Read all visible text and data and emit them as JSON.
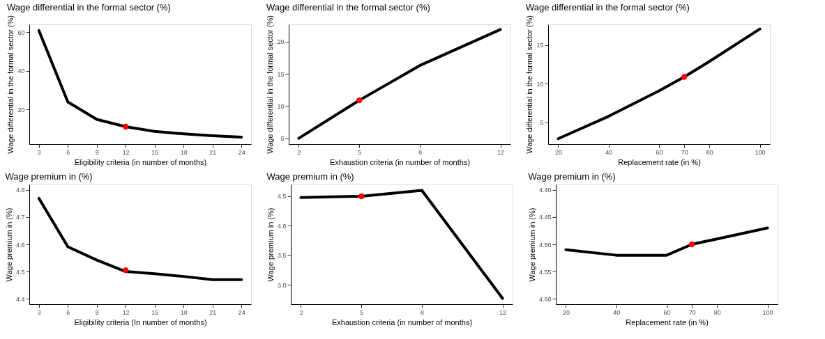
{
  "chart_data": [
    {
      "type": "line",
      "title": "Wage differential in the formal sector (%)",
      "xlabel": "Eligibility criteria (in number of months)",
      "ylabel": "Wage differential in the formal sector (%)",
      "xlim": [
        2,
        25
      ],
      "xticks": [
        3,
        6,
        9,
        12,
        15,
        18,
        21,
        24
      ],
      "ylim": [
        2,
        64
      ],
      "yticks": [
        20,
        40,
        60
      ],
      "grid": false,
      "line_style": "solid",
      "x": [
        3,
        6,
        9,
        12,
        15,
        18,
        21,
        24
      ],
      "series": [
        {
          "color": "#000000",
          "marker": "none",
          "values": [
            60.8,
            23.8,
            14.8,
            11,
            8.6,
            7.3,
            6.3,
            5.6
          ]
        },
        {
          "type": "scatter",
          "marker": "circle",
          "color": "#ff0000",
          "x": [
            12
          ],
          "values": [
            11
          ]
        }
      ]
    },
    {
      "type": "line",
      "title": "Wage differential in the formal sector (%)",
      "xlabel": "Exhaustion criteria (in number of months)",
      "ylabel": "Wage differential in the formal sector (%)",
      "xlim": [
        1.5,
        12.5
      ],
      "xticks": [
        2,
        5,
        8,
        12
      ],
      "ylim": [
        4.1,
        22.7
      ],
      "yticks": [
        5,
        10,
        15,
        20
      ],
      "grid": false,
      "line_style": "solid",
      "x": [
        2,
        5,
        8,
        12
      ],
      "series": [
        {
          "color": "#000000",
          "marker": "none",
          "values": [
            5,
            10.9,
            16.3,
            21.9
          ]
        },
        {
          "type": "scatter",
          "marker": "circle",
          "color": "#ff0000",
          "x": [
            5
          ],
          "values": [
            10.9
          ]
        }
      ]
    },
    {
      "type": "line",
      "title": "Wage differential in the formal sector (%)",
      "xlabel": "Replacement rate (in %)",
      "ylabel": "Wage differential in the formal sector (%)",
      "xlim": [
        16,
        104
      ],
      "xticks": [
        20,
        40,
        60,
        70,
        80,
        100
      ],
      "ylim": [
        2.2,
        17.7
      ],
      "yticks": [
        5,
        10,
        15
      ],
      "grid": false,
      "line_style": "solid",
      "x": [
        20,
        40,
        60,
        70,
        80,
        100
      ],
      "series": [
        {
          "color": "#000000",
          "marker": "none",
          "values": [
            2.9,
            5.8,
            9.1,
            10.9,
            12.9,
            17.1
          ]
        },
        {
          "type": "scatter",
          "marker": "circle",
          "color": "#ff0000",
          "x": [
            70
          ],
          "values": [
            10.9
          ]
        }
      ]
    },
    {
      "type": "line",
      "title": "Wage premium in (%)",
      "xlabel": "Eligibility criteria (In number of months)",
      "ylabel": "Wage premium in (%)",
      "xlim": [
        2,
        25
      ],
      "xticks": [
        3,
        6,
        9,
        12,
        15,
        18,
        21,
        24
      ],
      "ylim": [
        4.38,
        4.82
      ],
      "yticks": [
        4.4,
        4.5,
        4.6,
        4.7,
        4.8
      ],
      "grid": false,
      "line_style": "solid",
      "x": [
        3,
        6,
        9,
        12,
        15,
        18,
        21,
        24
      ],
      "series": [
        {
          "color": "#000000",
          "marker": "none",
          "values": [
            4.769,
            4.591,
            4.542,
            4.5,
            4.492,
            4.482,
            4.47,
            4.47
          ]
        },
        {
          "type": "scatter",
          "marker": "circle",
          "color": "#ff0000",
          "x": [
            12
          ],
          "values": [
            4.505
          ]
        }
      ]
    },
    {
      "type": "line",
      "title": "Wage premium in (%)",
      "xlabel": "Exhaustion criteria (in number of months)",
      "ylabel": "Wage premium in (%)",
      "xlim": [
        1.5,
        12.5
      ],
      "xticks": [
        2,
        5,
        8,
        12
      ],
      "ylim": [
        2.67,
        4.7
      ],
      "yticks": [
        {
          "value": 3.0,
          "label": "3.0"
        },
        3.5,
        {
          "value": 4.0,
          "label": "4.0"
        },
        4.5
      ],
      "grid": false,
      "line_style": "solid",
      "x": [
        2,
        5,
        8,
        12
      ],
      "series": [
        {
          "color": "#000000",
          "marker": "none",
          "values": [
            4.48,
            4.5,
            4.6,
            2.77
          ]
        },
        {
          "type": "scatter",
          "marker": "circle",
          "color": "#ff0000",
          "x": [
            5
          ],
          "values": [
            4.5
          ]
        }
      ]
    },
    {
      "type": "line",
      "title": "Wage premium in (%)",
      "xlabel": "Replacement rate (in %)",
      "ylabel": "Wage premium in (%)",
      "xlim": [
        16,
        104
      ],
      "xticks": [
        20,
        40,
        60,
        70,
        80,
        100
      ],
      "ylim": [
        4.61,
        4.39
      ],
      "yticks": [
        {
          "value": 4.4,
          "label": "4.40"
        },
        4.45,
        {
          "value": 4.5,
          "label": "4.50"
        },
        4.55,
        {
          "value": 4.6,
          "label": "4.60"
        }
      ],
      "grid": false,
      "line_style": "solid",
      "x": [
        20,
        40,
        60,
        70,
        80,
        100
      ],
      "series": [
        {
          "color": "#000000",
          "marker": "none",
          "values": [
            4.51,
            4.52,
            4.52,
            4.5,
            4.49,
            4.47
          ]
        },
        {
          "type": "scatter",
          "marker": "circle",
          "color": "#ff0000",
          "x": [
            70
          ],
          "values": [
            4.5
          ]
        }
      ]
    }
  ]
}
